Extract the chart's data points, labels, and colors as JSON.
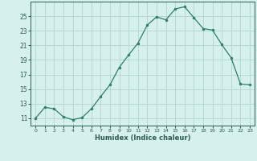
{
  "x": [
    0,
    1,
    2,
    3,
    4,
    5,
    6,
    7,
    8,
    9,
    10,
    11,
    12,
    13,
    14,
    15,
    16,
    17,
    18,
    19,
    20,
    21,
    22,
    23
  ],
  "y": [
    11,
    12.5,
    12.3,
    11.2,
    10.8,
    11.1,
    12.3,
    14.0,
    15.6,
    18.0,
    19.7,
    21.3,
    23.8,
    24.9,
    24.5,
    26.0,
    26.3,
    24.8,
    23.3,
    23.1,
    21.1,
    19.3,
    15.7,
    15.6
  ],
  "line_color": "#2e7d6e",
  "marker": "o",
  "marker_size": 2.0,
  "bg_color": "#d6f0ee",
  "grid_color": "#b8d8d5",
  "tick_color": "#2e5a54",
  "xlabel": "Humidex (Indice chaleur)",
  "ylim": [
    10.0,
    27.0
  ],
  "yticks": [
    11,
    13,
    15,
    17,
    19,
    21,
    23,
    25
  ],
  "xlim": [
    -0.5,
    23.5
  ],
  "figsize": [
    3.2,
    2.0
  ],
  "dpi": 100
}
